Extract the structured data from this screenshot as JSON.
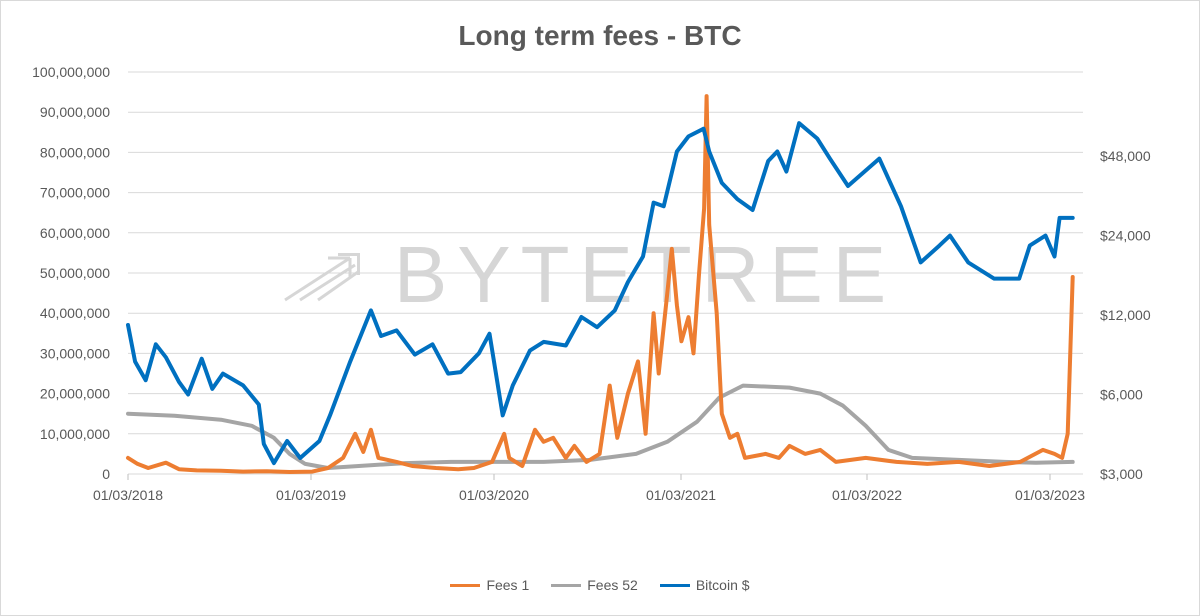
{
  "chart_data": {
    "type": "line",
    "title": "Long term fees - BTC",
    "watermark": "BYTETREE",
    "x_ticks": [
      "01/03/2018",
      "01/03/2019",
      "01/03/2020",
      "01/03/2021",
      "01/03/2022",
      "01/03/2023"
    ],
    "x_range": [
      "2018-03-01",
      "2023-04-15"
    ],
    "y_left": {
      "min": 0,
      "max": 100000000,
      "ticks": [
        "0",
        "10,000,000",
        "20,000,000",
        "30,000,000",
        "40,000,000",
        "50,000,000",
        "60,000,000",
        "70,000,000",
        "80,000,000",
        "90,000,000",
        "100,000,000"
      ]
    },
    "y_right": {
      "scale": "log",
      "min": 3000,
      "max": 100000,
      "ticks": [
        {
          "value": 3000,
          "label": "$3,000"
        },
        {
          "value": 6000,
          "label": "$6,000"
        },
        {
          "value": 12000,
          "label": "$12,000"
        },
        {
          "value": 24000,
          "label": "$24,000"
        },
        {
          "value": 48000,
          "label": "$48,000"
        }
      ]
    },
    "grid": true,
    "legend_position": "bottom",
    "series": [
      {
        "name": "Fees 1",
        "axis": "left",
        "color": "#ed7d31",
        "points": [
          [
            "2018-03-01",
            4000000
          ],
          [
            "2018-03-20",
            2500000
          ],
          [
            "2018-04-10",
            1500000
          ],
          [
            "2018-05-15",
            2800000
          ],
          [
            "2018-06-10",
            1200000
          ],
          [
            "2018-07-15",
            900000
          ],
          [
            "2018-09-01",
            800000
          ],
          [
            "2018-10-15",
            600000
          ],
          [
            "2018-12-01",
            700000
          ],
          [
            "2019-01-15",
            500000
          ],
          [
            "2019-03-01",
            600000
          ],
          [
            "2019-04-01",
            1500000
          ],
          [
            "2019-05-01",
            4000000
          ],
          [
            "2019-05-25",
            10000000
          ],
          [
            "2019-06-10",
            5500000
          ],
          [
            "2019-06-25",
            11000000
          ],
          [
            "2019-07-10",
            4000000
          ],
          [
            "2019-08-15",
            3000000
          ],
          [
            "2019-09-15",
            2000000
          ],
          [
            "2019-11-01",
            1500000
          ],
          [
            "2019-12-15",
            1200000
          ],
          [
            "2020-01-15",
            1500000
          ],
          [
            "2020-02-20",
            3000000
          ],
          [
            "2020-03-15",
            10000000
          ],
          [
            "2020-03-25",
            4000000
          ],
          [
            "2020-04-20",
            2000000
          ],
          [
            "2020-05-15",
            11000000
          ],
          [
            "2020-06-01",
            8000000
          ],
          [
            "2020-06-20",
            9000000
          ],
          [
            "2020-07-15",
            4000000
          ],
          [
            "2020-08-01",
            7000000
          ],
          [
            "2020-08-25",
            3000000
          ],
          [
            "2020-09-20",
            5000000
          ],
          [
            "2020-10-10",
            22000000
          ],
          [
            "2020-10-25",
            9000000
          ],
          [
            "2020-11-15",
            20000000
          ],
          [
            "2020-12-05",
            28000000
          ],
          [
            "2020-12-20",
            10000000
          ],
          [
            "2021-01-05",
            40000000
          ],
          [
            "2021-01-15",
            25000000
          ],
          [
            "2021-02-01",
            45000000
          ],
          [
            "2021-02-10",
            56000000
          ],
          [
            "2021-02-20",
            42000000
          ],
          [
            "2021-03-01",
            33000000
          ],
          [
            "2021-03-15",
            39000000
          ],
          [
            "2021-03-25",
            30000000
          ],
          [
            "2021-04-05",
            50000000
          ],
          [
            "2021-04-15",
            66000000
          ],
          [
            "2021-04-20",
            94000000
          ],
          [
            "2021-04-25",
            62000000
          ],
          [
            "2021-05-10",
            40000000
          ],
          [
            "2021-05-20",
            15000000
          ],
          [
            "2021-06-05",
            9000000
          ],
          [
            "2021-06-20",
            10000000
          ],
          [
            "2021-07-05",
            4000000
          ],
          [
            "2021-08-15",
            5000000
          ],
          [
            "2021-09-10",
            4000000
          ],
          [
            "2021-10-01",
            7000000
          ],
          [
            "2021-11-01",
            5000000
          ],
          [
            "2021-12-01",
            6000000
          ],
          [
            "2022-01-01",
            3000000
          ],
          [
            "2022-03-01",
            4000000
          ],
          [
            "2022-05-01",
            3000000
          ],
          [
            "2022-07-01",
            2500000
          ],
          [
            "2022-09-01",
            3000000
          ],
          [
            "2022-11-01",
            2000000
          ],
          [
            "2023-01-01",
            3000000
          ],
          [
            "2023-02-15",
            6000000
          ],
          [
            "2023-03-10",
            5000000
          ],
          [
            "2023-03-25",
            4000000
          ],
          [
            "2023-04-05",
            10000000
          ],
          [
            "2023-04-15",
            49000000
          ]
        ]
      },
      {
        "name": "Fees 52",
        "axis": "left",
        "color": "#a5a5a5",
        "points": [
          [
            "2018-03-01",
            15000000
          ],
          [
            "2018-06-01",
            14500000
          ],
          [
            "2018-09-01",
            13500000
          ],
          [
            "2018-11-01",
            12000000
          ],
          [
            "2018-12-15",
            9000000
          ],
          [
            "2019-01-15",
            5000000
          ],
          [
            "2019-02-15",
            2500000
          ],
          [
            "2019-04-01",
            1500000
          ],
          [
            "2019-06-01",
            2000000
          ],
          [
            "2019-09-01",
            2700000
          ],
          [
            "2019-12-01",
            3000000
          ],
          [
            "2020-03-01",
            3000000
          ],
          [
            "2020-06-01",
            3000000
          ],
          [
            "2020-09-01",
            3500000
          ],
          [
            "2020-12-01",
            5000000
          ],
          [
            "2021-02-01",
            8000000
          ],
          [
            "2021-04-01",
            13000000
          ],
          [
            "2021-05-15",
            19000000
          ],
          [
            "2021-07-01",
            22000000
          ],
          [
            "2021-10-01",
            21500000
          ],
          [
            "2021-12-01",
            20000000
          ],
          [
            "2022-01-15",
            17000000
          ],
          [
            "2022-03-01",
            12000000
          ],
          [
            "2022-04-15",
            6000000
          ],
          [
            "2022-06-01",
            4000000
          ],
          [
            "2022-09-01",
            3500000
          ],
          [
            "2022-12-01",
            3000000
          ],
          [
            "2023-02-01",
            2800000
          ],
          [
            "2023-04-15",
            3000000
          ]
        ]
      },
      {
        "name": "Bitcoin $",
        "axis": "right",
        "color": "#0070c0",
        "points": [
          [
            "2018-03-01",
            11000
          ],
          [
            "2018-03-15",
            8000
          ],
          [
            "2018-04-05",
            6800
          ],
          [
            "2018-04-25",
            9300
          ],
          [
            "2018-05-15",
            8300
          ],
          [
            "2018-06-10",
            6700
          ],
          [
            "2018-06-28",
            6000
          ],
          [
            "2018-07-25",
            8200
          ],
          [
            "2018-08-15",
            6300
          ],
          [
            "2018-09-05",
            7200
          ],
          [
            "2018-10-15",
            6500
          ],
          [
            "2018-11-15",
            5500
          ],
          [
            "2018-11-25",
            3900
          ],
          [
            "2018-12-15",
            3300
          ],
          [
            "2019-01-10",
            4000
          ],
          [
            "2019-02-05",
            3450
          ],
          [
            "2019-03-15",
            4000
          ],
          [
            "2019-04-05",
            5000
          ],
          [
            "2019-05-15",
            8000
          ],
          [
            "2019-06-25",
            12500
          ],
          [
            "2019-07-15",
            10000
          ],
          [
            "2019-08-15",
            10500
          ],
          [
            "2019-09-20",
            8500
          ],
          [
            "2019-10-25",
            9300
          ],
          [
            "2019-11-25",
            7200
          ],
          [
            "2019-12-20",
            7300
          ],
          [
            "2020-01-25",
            8600
          ],
          [
            "2020-02-15",
            10200
          ],
          [
            "2020-03-12",
            5000
          ],
          [
            "2020-04-01",
            6500
          ],
          [
            "2020-05-05",
            8800
          ],
          [
            "2020-06-01",
            9500
          ],
          [
            "2020-07-15",
            9200
          ],
          [
            "2020-08-15",
            11800
          ],
          [
            "2020-09-15",
            10800
          ],
          [
            "2020-10-20",
            12500
          ],
          [
            "2020-11-15",
            16000
          ],
          [
            "2020-12-15",
            20000
          ],
          [
            "2021-01-05",
            32000
          ],
          [
            "2021-01-25",
            31000
          ],
          [
            "2021-02-20",
            50000
          ],
          [
            "2021-03-15",
            57000
          ],
          [
            "2021-04-14",
            61000
          ],
          [
            "2021-04-25",
            50000
          ],
          [
            "2021-05-20",
            38000
          ],
          [
            "2021-06-20",
            33000
          ],
          [
            "2021-07-20",
            30000
          ],
          [
            "2021-08-20",
            46000
          ],
          [
            "2021-09-07",
            50000
          ],
          [
            "2021-09-25",
            42000
          ],
          [
            "2021-10-20",
            64000
          ],
          [
            "2021-11-25",
            56000
          ],
          [
            "2021-12-20",
            47000
          ],
          [
            "2022-01-25",
            37000
          ],
          [
            "2022-03-28",
            47000
          ],
          [
            "2022-05-10",
            31000
          ],
          [
            "2022-06-18",
            19000
          ],
          [
            "2022-07-25",
            22000
          ],
          [
            "2022-08-15",
            24000
          ],
          [
            "2022-09-20",
            19000
          ],
          [
            "2022-11-10",
            16500
          ],
          [
            "2022-12-30",
            16500
          ],
          [
            "2023-01-20",
            22000
          ],
          [
            "2023-02-20",
            24000
          ],
          [
            "2023-03-10",
            20000
          ],
          [
            "2023-03-20",
            28000
          ],
          [
            "2023-04-15",
            28000
          ]
        ]
      }
    ]
  }
}
